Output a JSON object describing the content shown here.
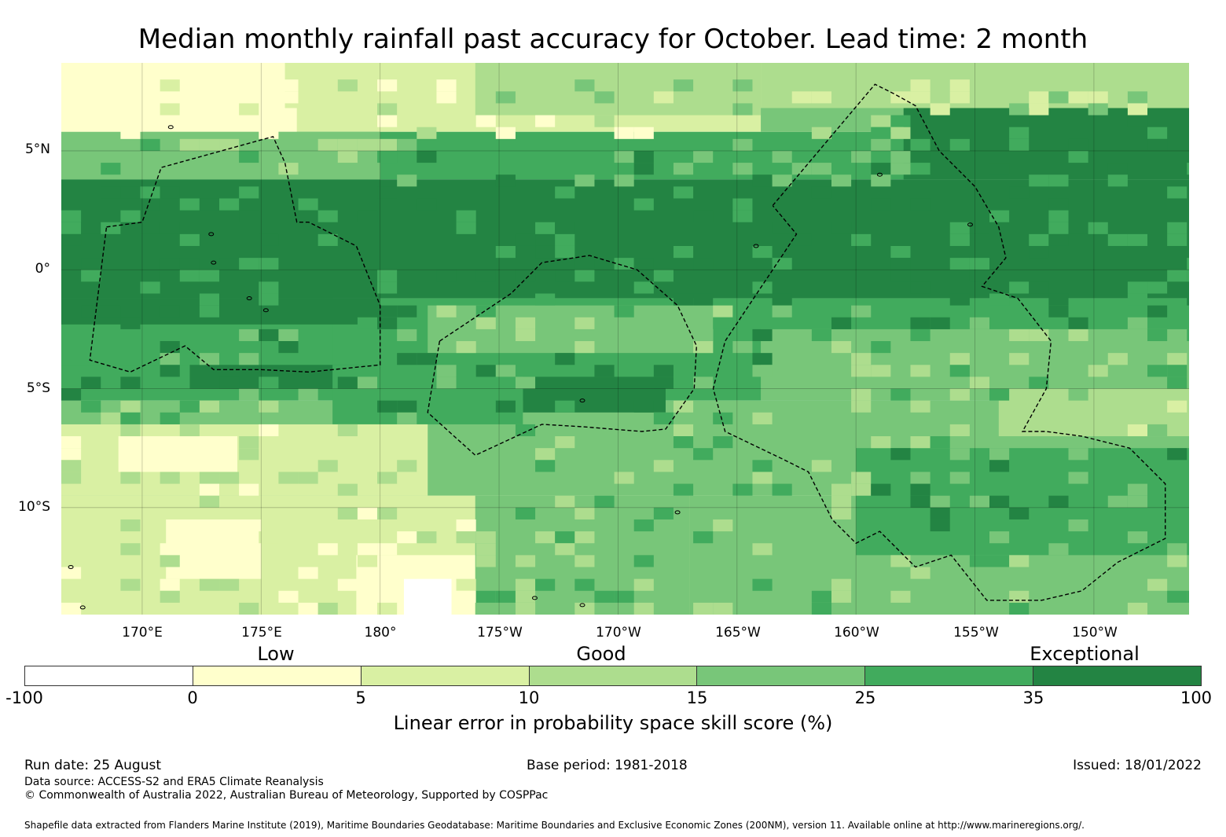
{
  "title": "Median monthly rainfall past accuracy for October. Lead time: 2 month",
  "map": {
    "lat_labels": [
      "5°N",
      "0°",
      "5°S",
      "10°S"
    ],
    "lon_labels": [
      "170°E",
      "175°E",
      "180°",
      "175°W",
      "170°W",
      "165°W",
      "160°W",
      "155°W",
      "150°W"
    ],
    "lat_range": [
      -14.5,
      8.7
    ],
    "lon_range": [
      166.6,
      214.0
    ],
    "bands": [
      {
        "lat_top": 8.7,
        "lat_bot": 5.8,
        "base_class": 2
      },
      {
        "lat_top": 5.8,
        "lat_bot": 3.8,
        "base_class": 5
      },
      {
        "lat_top": 3.8,
        "lat_bot": -1.2,
        "base_class": 6
      },
      {
        "lat_top": -1.2,
        "lat_bot": -5.5,
        "base_class": 5
      },
      {
        "lat_top": -5.5,
        "lat_bot": -9.5,
        "base_class": 4
      },
      {
        "lat_top": -9.5,
        "lat_bot": -14.5,
        "base_class": 3
      }
    ],
    "patches": [
      {
        "lon": [
          166.6,
          176.5
        ],
        "lat": [
          8.7,
          5.8
        ],
        "class": 1
      },
      {
        "lon": [
          166.6,
          170.0
        ],
        "lat": [
          8.0,
          5.5
        ],
        "class": 1
      },
      {
        "lon": [
          176.0,
          184.0
        ],
        "lat": [
          8.7,
          6.8
        ],
        "class": 2
      },
      {
        "lon": [
          184.0,
          196.0
        ],
        "lat": [
          8.7,
          6.5
        ],
        "class": 3
      },
      {
        "lon": [
          196.0,
          214.0
        ],
        "lat": [
          8.7,
          6.8
        ],
        "class": 3
      },
      {
        "lon": [
          196.0,
          214.0
        ],
        "lat": [
          6.8,
          5.8
        ],
        "class": 4
      },
      {
        "lon": [
          202.0,
          214.0
        ],
        "lat": [
          6.8,
          3.8
        ],
        "class": 6
      },
      {
        "lon": [
          166.6,
          180.0
        ],
        "lat": [
          5.8,
          3.8
        ],
        "class": 4
      },
      {
        "lon": [
          166.6,
          178.0
        ],
        "lat": [
          -1.2,
          -4.0
        ],
        "class": 5
      },
      {
        "lon": [
          166.6,
          180.0
        ],
        "lat": [
          -1.2,
          -2.3
        ],
        "class": 6
      },
      {
        "lon": [
          172.0,
          180.0
        ],
        "lat": [
          -4.0,
          -5.0
        ],
        "class": 6
      },
      {
        "lon": [
          182.0,
          194.0
        ],
        "lat": [
          -1.5,
          -3.5
        ],
        "class": 4
      },
      {
        "lon": [
          186.0,
          192.0
        ],
        "lat": [
          -4.5,
          -6.0
        ],
        "class": 6
      },
      {
        "lon": [
          178.0,
          186.0
        ],
        "lat": [
          -4.0,
          -6.5
        ],
        "class": 5
      },
      {
        "lon": [
          196.0,
          214.0
        ],
        "lat": [
          -2.5,
          -5.5
        ],
        "class": 4
      },
      {
        "lon": [
          206.0,
          214.0
        ],
        "lat": [
          -5.0,
          -7.0
        ],
        "class": 3
      },
      {
        "lon": [
          166.6,
          182.0
        ],
        "lat": [
          -6.5,
          -9.5
        ],
        "class": 2
      },
      {
        "lon": [
          169.0,
          174.0
        ],
        "lat": [
          -7.0,
          -8.5
        ],
        "class": 1
      },
      {
        "lon": [
          166.6,
          184.0
        ],
        "lat": [
          -9.5,
          -14.5
        ],
        "class": 2
      },
      {
        "lon": [
          171.0,
          175.0
        ],
        "lat": [
          -10.5,
          -13.0
        ],
        "class": 1
      },
      {
        "lon": [
          179.0,
          184.0
        ],
        "lat": [
          -12.0,
          -14.5
        ],
        "class": 1
      },
      {
        "lon": [
          181.0,
          183.0
        ],
        "lat": [
          -13.0,
          -14.5
        ],
        "class": 0
      },
      {
        "lon": [
          184.0,
          193.0
        ],
        "lat": [
          -9.5,
          -14.5
        ],
        "class": 4
      },
      {
        "lon": [
          193.0,
          214.0
        ],
        "lat": [
          -9.5,
          -14.5
        ],
        "class": 4
      },
      {
        "lon": [
          205.0,
          213.0
        ],
        "lat": [
          -9.8,
          -11.0
        ],
        "class": 6
      },
      {
        "lon": [
          200.0,
          214.0
        ],
        "lat": [
          -7.5,
          -12.0
        ],
        "class": 5
      }
    ],
    "boundaries": [
      [
        [
          168.5,
          1.8
        ],
        [
          170.0,
          2.0
        ],
        [
          170.8,
          4.3
        ],
        [
          175.5,
          5.6
        ],
        [
          176.0,
          4.5
        ],
        [
          176.5,
          2.0
        ],
        [
          177.0,
          2.0
        ],
        [
          179.0,
          1.0
        ],
        [
          180.0,
          -1.5
        ],
        [
          180.0,
          -4.0
        ],
        [
          177.0,
          -4.3
        ],
        [
          175.0,
          -4.2
        ],
        [
          173.0,
          -4.2
        ],
        [
          171.8,
          -3.2
        ],
        [
          169.5,
          -4.3
        ],
        [
          167.8,
          -3.8
        ],
        [
          168.5,
          1.8
        ]
      ],
      [
        [
          179.0,
          -14.5
        ]
      ],
      [
        [
          182.5,
          -3.0
        ],
        [
          185.5,
          -1.0
        ],
        [
          186.8,
          0.3
        ],
        [
          188.8,
          0.6
        ],
        [
          190.8,
          0.0
        ],
        [
          192.5,
          -1.5
        ],
        [
          193.3,
          -3.2
        ],
        [
          193.2,
          -5.0
        ],
        [
          192.0,
          -6.7
        ],
        [
          191.0,
          -6.8
        ],
        [
          188.5,
          -6.6
        ],
        [
          186.8,
          -6.5
        ],
        [
          184.0,
          -7.8
        ],
        [
          182.0,
          -6.0
        ],
        [
          182.5,
          -3.0
        ]
      ],
      [
        [
          196.5,
          2.7
        ],
        [
          200.8,
          7.8
        ],
        [
          201.6,
          7.4
        ],
        [
          202.5,
          6.9
        ],
        [
          203.5,
          5.0
        ],
        [
          205.0,
          3.5
        ],
        [
          206.0,
          1.8
        ],
        [
          206.3,
          0.5
        ],
        [
          205.3,
          -0.7
        ],
        [
          206.8,
          -1.2
        ],
        [
          208.2,
          -3.0
        ],
        [
          208.0,
          -5.0
        ],
        [
          207.0,
          -6.8
        ],
        [
          208.0,
          -6.8
        ],
        [
          209.5,
          -7.0
        ],
        [
          211.5,
          -7.5
        ],
        [
          213.0,
          -9.0
        ],
        [
          213.0,
          -11.3
        ],
        [
          211.0,
          -12.3
        ],
        [
          209.5,
          -13.5
        ],
        [
          207.8,
          -13.9
        ],
        [
          205.5,
          -13.9
        ],
        [
          204.0,
          -12.0
        ],
        [
          202.5,
          -12.5
        ],
        [
          201.0,
          -11.0
        ],
        [
          200.0,
          -11.5
        ],
        [
          199.0,
          -10.5
        ],
        [
          198.0,
          -8.5
        ],
        [
          197.0,
          -8.0
        ],
        [
          194.5,
          -6.8
        ],
        [
          194.0,
          -5.0
        ],
        [
          194.5,
          -3.0
        ],
        [
          195.5,
          -1.5
        ],
        [
          196.5,
          0.0
        ],
        [
          197.5,
          1.5
        ],
        [
          196.5,
          2.7
        ]
      ]
    ]
  },
  "colorbar": {
    "categories": {
      "low": "Low",
      "good": "Good",
      "exceptional": "Exceptional"
    },
    "ticks": [
      "-100",
      "0",
      "5",
      "10",
      "15",
      "25",
      "35",
      "100"
    ],
    "colors": [
      "#ffffff",
      "#ffffcc",
      "#d9f0a3",
      "#addd8e",
      "#78c679",
      "#41ab5d",
      "#238443"
    ],
    "title": "Linear error in probability space skill score (%)"
  },
  "footer": {
    "run_date": "Run date: 25 August",
    "base_period": "Base period: 1981-2018",
    "issued": "Issued: 18/01/2022",
    "data_source": "Data source: ACCESS-S2 and ERA5 Climate Reanalysis",
    "copyright": "© Commonwealth of Australia 2022, Australian Bureau of Meteorology, Supported by COSPPac",
    "shapefile": "Shapefile data extracted from Flanders Marine Institute (2019), Maritime Boundaries Geodatabase: Maritime Boundaries and Exclusive Economic Zones (200NM), version 11. Available online at http://www.marineregions.org/."
  }
}
